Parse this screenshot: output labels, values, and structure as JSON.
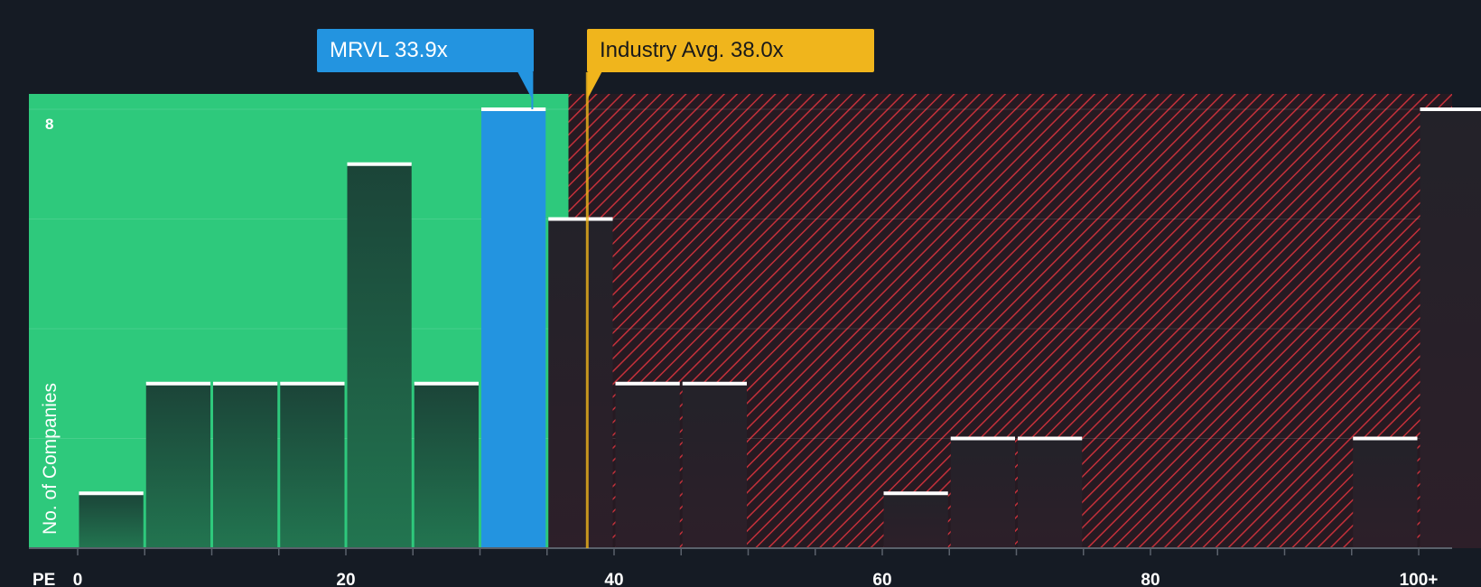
{
  "chart_data": {
    "type": "bar",
    "title": "",
    "xlabel": "PE",
    "ylabel": "No. of Companies",
    "xlim": [
      0,
      100
    ],
    "ylim": [
      0,
      8
    ],
    "bin_width": 5,
    "x_ticks": [
      {
        "value": 0,
        "label": "0"
      },
      {
        "value": 20,
        "label": "20"
      },
      {
        "value": 40,
        "label": "40"
      },
      {
        "value": 60,
        "label": "60"
      },
      {
        "value": 80,
        "label": "80"
      },
      {
        "value": 100,
        "label": "100+"
      }
    ],
    "y_ticks": [
      {
        "value": 8,
        "label": "8"
      }
    ],
    "bins": [
      {
        "start": 0,
        "count": 1
      },
      {
        "start": 5,
        "count": 3
      },
      {
        "start": 10,
        "count": 3
      },
      {
        "start": 15,
        "count": 3
      },
      {
        "start": 20,
        "count": 7
      },
      {
        "start": 25,
        "count": 3
      },
      {
        "start": 30,
        "count": 8,
        "highlight": true
      },
      {
        "start": 35,
        "count": 6
      },
      {
        "start": 40,
        "count": 3
      },
      {
        "start": 45,
        "count": 3
      },
      {
        "start": 60,
        "count": 1
      },
      {
        "start": 65,
        "count": 2
      },
      {
        "start": 70,
        "count": 2
      },
      {
        "start": 95,
        "count": 2
      },
      {
        "start": 100,
        "count": 8
      }
    ],
    "fair_value_pe": 36.6,
    "company": {
      "ticker": "MRVL",
      "pe": 33.9,
      "label": "MRVL 33.9x",
      "color": "#2394e0"
    },
    "industry": {
      "pe": 38.0,
      "label": "Industry Avg. 38.0x",
      "color": "#f0b51c"
    },
    "colors": {
      "background": "#151b24",
      "fair_zone": "#2ec97c",
      "expensive_zone": "#8c2a32",
      "bar_in_fair": "#1d4a3c",
      "bar_expensive": "#2a1d27",
      "bar_top": "#ffffff"
    }
  }
}
